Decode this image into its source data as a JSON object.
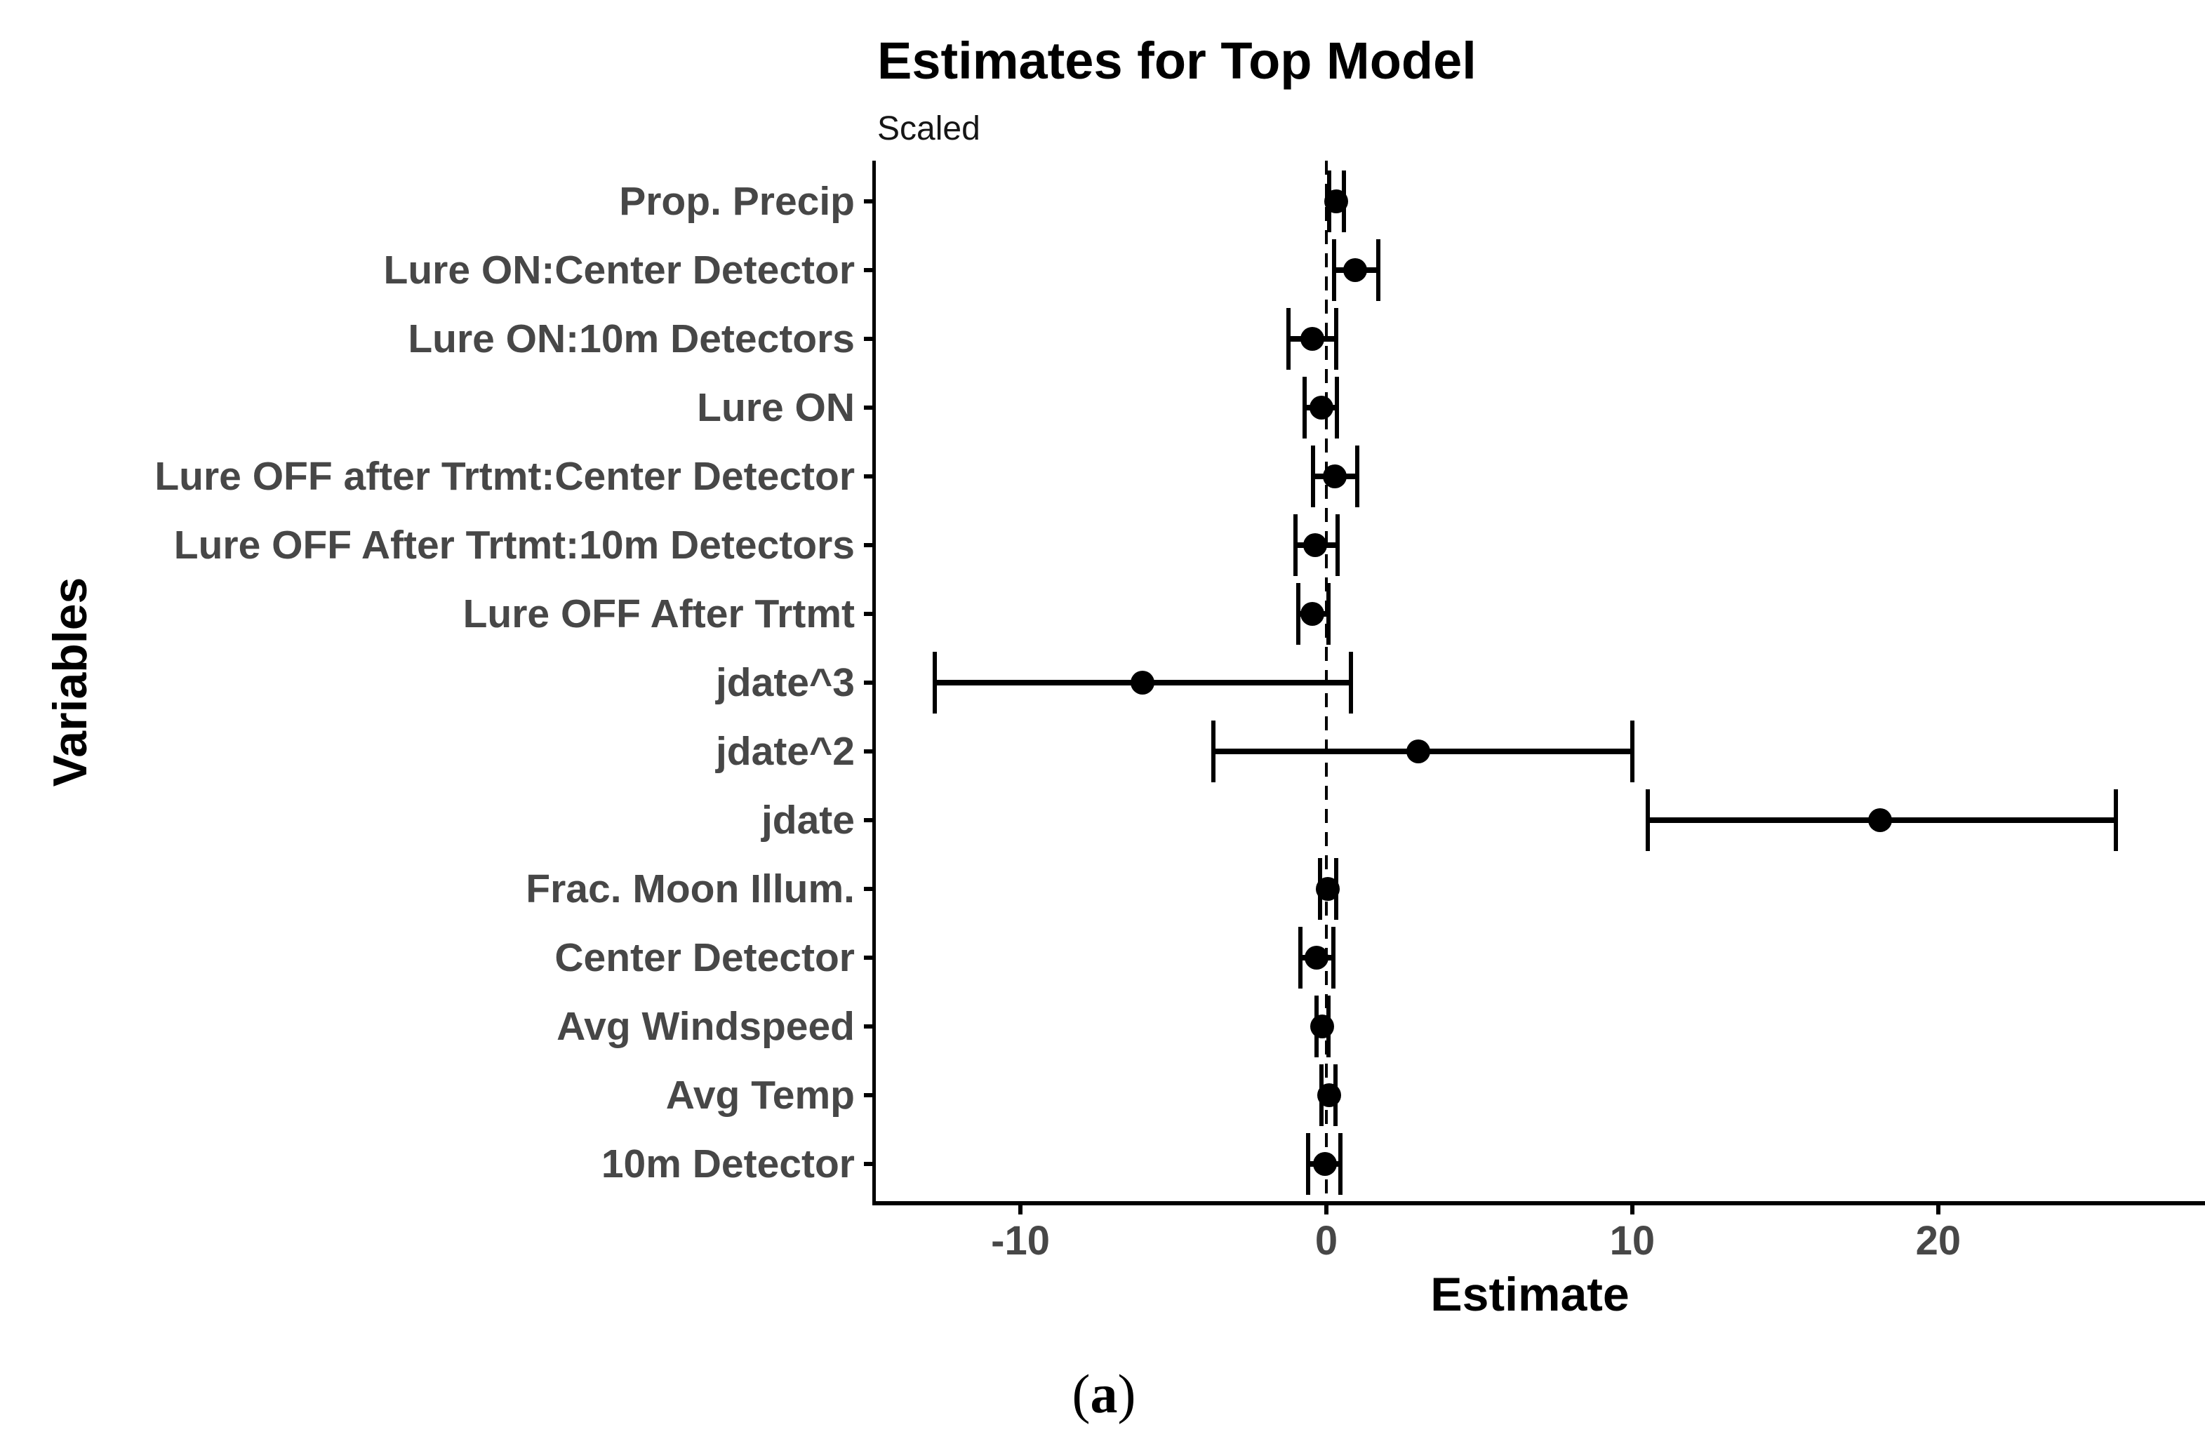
{
  "figure": {
    "title": "Estimates for Top Model",
    "subtitle": "Scaled",
    "x_axis_title": "Estimate",
    "y_axis_title": "Variables",
    "caption_open": "(",
    "caption_letter": "a",
    "caption_close": ")"
  },
  "colors": {
    "background": "#ffffff",
    "data_black": "#000000",
    "axis_text_gray": "#474747",
    "axis_line_black": "#000000"
  },
  "chart_data": {
    "type": "scatter",
    "variant": "dot-and-whisker forest plot, horizontal error bars with caps",
    "title": "Estimates for Top Model",
    "subtitle": "Scaled",
    "xlabel": "Estimate",
    "ylabel": "Variables",
    "xlim": [
      -14.75,
      28.72
    ],
    "x_ticks": [
      "-10",
      "0",
      "10",
      "20"
    ],
    "x_tick_values": [
      -10,
      0,
      10,
      20
    ],
    "reference_line_x": 0,
    "reference_line_style": "dashed",
    "grid": "off",
    "legend": "none",
    "rows": [
      {
        "label": "Prop. Precip",
        "estimate": 0.33,
        "lower": 0.1,
        "upper": 0.57
      },
      {
        "label": "Lure ON:Center Detector",
        "estimate": 0.95,
        "lower": 0.25,
        "upper": 1.7
      },
      {
        "label": "Lure ON:10m Detectors",
        "estimate": -0.45,
        "lower": -1.25,
        "upper": 0.33
      },
      {
        "label": "Lure ON",
        "estimate": -0.15,
        "lower": -0.7,
        "upper": 0.35
      },
      {
        "label": "Lure OFF after Trtmt:Center Detector",
        "estimate": 0.27,
        "lower": -0.43,
        "upper": 1.0
      },
      {
        "label": "Lure OFF After Trtmt:10m Detectors",
        "estimate": -0.36,
        "lower": -1.02,
        "upper": 0.37
      },
      {
        "label": "Lure OFF After Trtmt",
        "estimate": -0.47,
        "lower": -0.92,
        "upper": 0.08
      },
      {
        "label": "jdate^3",
        "estimate": -6.0,
        "lower": -12.8,
        "upper": 0.8
      },
      {
        "label": "jdate^2",
        "estimate": 3.0,
        "lower": -3.7,
        "upper": 10.0
      },
      {
        "label": "jdate",
        "estimate": 18.1,
        "lower": 10.5,
        "upper": 25.8
      },
      {
        "label": "Frac. Moon Illum.",
        "estimate": 0.05,
        "lower": -0.21,
        "upper": 0.32
      },
      {
        "label": "Center Detector",
        "estimate": -0.31,
        "lower": -0.86,
        "upper": 0.23
      },
      {
        "label": "Avg Windspeed",
        "estimate": -0.13,
        "lower": -0.31,
        "upper": 0.06
      },
      {
        "label": "Avg Temp",
        "estimate": 0.09,
        "lower": -0.16,
        "upper": 0.29
      },
      {
        "label": "10m Detector",
        "estimate": -0.04,
        "lower": -0.59,
        "upper": 0.47
      }
    ]
  }
}
